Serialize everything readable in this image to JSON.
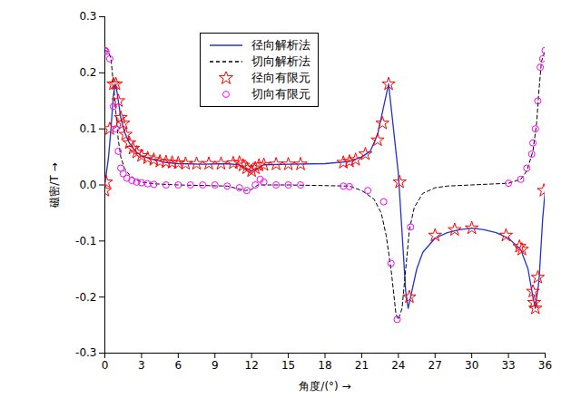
{
  "chart_data": {
    "type": "line",
    "x_label": "角度/(°)",
    "y_label": "磁密/T",
    "xlim": [
      0,
      36
    ],
    "xticks": [
      0,
      3,
      6,
      9,
      12,
      15,
      18,
      21,
      24,
      27,
      30,
      33,
      36
    ],
    "ylim": [
      -0.3,
      0.3
    ],
    "yticks": [
      -0.3,
      -0.2,
      -0.1,
      {
        "value": 0,
        "label": "0.0"
      },
      0.1,
      0.2,
      0.3
    ],
    "grid": false,
    "legend": "upper left",
    "series": [
      {
        "name": "径向解析法",
        "type": "line",
        "line_style": "solid",
        "color": "#2233cc",
        "x": [
          0,
          0.3,
          0.5,
          0.7,
          0.85,
          1.0,
          1.3,
          1.6,
          2,
          2.5,
          3,
          4,
          5,
          6,
          8,
          10,
          11,
          11.5,
          12,
          12.5,
          13,
          15,
          18,
          20,
          21,
          21.7,
          22.3,
          22.8,
          23.2,
          23.6,
          24,
          24.2,
          24.6,
          24.8,
          25,
          25.5,
          26,
          27,
          28,
          29,
          30,
          31,
          32,
          33,
          34,
          34.6,
          35,
          35.2,
          35.5,
          35.8,
          36
        ],
        "values": [
          0,
          0.05,
          0.1,
          0.16,
          0.18,
          0.165,
          0.12,
          0.095,
          0.075,
          0.06,
          0.052,
          0.045,
          0.04,
          0.038,
          0.037,
          0.038,
          0.036,
          0.03,
          0.025,
          0.03,
          0.036,
          0.037,
          0.038,
          0.042,
          0.05,
          0.06,
          0.09,
          0.14,
          0.18,
          0.1,
          0.02,
          -0.05,
          -0.19,
          -0.22,
          -0.2,
          -0.15,
          -0.12,
          -0.095,
          -0.085,
          -0.08,
          -0.077,
          -0.08,
          -0.085,
          -0.095,
          -0.115,
          -0.15,
          -0.2,
          -0.22,
          -0.17,
          -0.06,
          -0.01
        ]
      },
      {
        "name": "切向解析法",
        "type": "line",
        "line_style": "dashed",
        "color": "#000000",
        "x": [
          0,
          0.3,
          0.5,
          0.7,
          0.9,
          1.1,
          1.3,
          1.6,
          2,
          2.5,
          3,
          4,
          6,
          10,
          11.5,
          12,
          12.5,
          15,
          20,
          21,
          22,
          22.6,
          23,
          23.4,
          23.8,
          24,
          24.3,
          24.6,
          24.9,
          25.3,
          26,
          27,
          28,
          30,
          33,
          34,
          34.5,
          35,
          35.3,
          35.5,
          35.7,
          36
        ],
        "values": [
          0.24,
          0.238,
          0.225,
          0.18,
          0.13,
          0.08,
          0.05,
          0.03,
          0.018,
          0.01,
          0.005,
          0.002,
          0,
          -0.002,
          -0.01,
          -0.008,
          0,
          0,
          -0.002,
          -0.01,
          -0.025,
          -0.05,
          -0.09,
          -0.15,
          -0.23,
          -0.24,
          -0.22,
          -0.15,
          -0.08,
          -0.04,
          -0.015,
          -0.005,
          -0.002,
          0,
          0.003,
          0.01,
          0.025,
          0.06,
          0.11,
          0.17,
          0.22,
          0.24
        ]
      },
      {
        "name": "径向有限元",
        "type": "scatter",
        "marker": "star",
        "color": "#ff0000",
        "x": [
          0,
          0.1,
          0.4,
          0.7,
          0.9,
          1.1,
          1.3,
          1.5,
          1.7,
          2,
          2.3,
          2.6,
          3,
          3.5,
          4,
          4.5,
          5,
          5.5,
          6,
          6.6,
          7.5,
          8.5,
          9.5,
          10.5,
          11,
          11.3,
          11.6,
          12,
          12.3,
          12.6,
          13,
          14,
          15,
          16,
          19.5,
          20,
          20.5,
          21.3,
          22.3,
          22.7,
          23.2,
          24.1,
          24.9,
          27,
          28.6,
          30,
          32.8,
          33.9,
          34.1,
          35,
          35.1,
          35.2,
          35.4,
          35.9
        ],
        "values": [
          -0.01,
          0.005,
          0.1,
          0.18,
          0.18,
          0.15,
          0.12,
          0.11,
          0.09,
          0.075,
          0.065,
          0.058,
          0.052,
          0.048,
          0.045,
          0.042,
          0.041,
          0.04,
          0.039,
          0.038,
          0.038,
          0.038,
          0.038,
          0.039,
          0.04,
          0.035,
          0.03,
          0.025,
          0.03,
          0.035,
          0.036,
          0.037,
          0.037,
          0.037,
          0.04,
          0.042,
          0.045,
          0.055,
          0.08,
          0.11,
          0.18,
          0.005,
          -0.2,
          -0.09,
          -0.08,
          -0.077,
          -0.09,
          -0.11,
          -0.115,
          -0.19,
          -0.21,
          -0.22,
          -0.165,
          -0.01
        ]
      },
      {
        "name": "切向有限元",
        "type": "scatter",
        "marker": "circle",
        "color": "#ff00ff",
        "x": [
          0,
          0.1,
          0.4,
          0.7,
          0.9,
          1.1,
          1.3,
          1.5,
          1.8,
          2.2,
          2.6,
          3,
          3.5,
          4,
          5,
          6,
          7,
          8,
          9,
          10,
          11,
          11.6,
          12.3,
          12.7,
          13,
          14,
          15,
          16,
          19.5,
          20,
          21.5,
          22.8,
          23.4,
          23.9,
          25,
          33,
          34,
          34.5,
          34.9,
          35,
          35.2,
          35.4,
          35.6,
          35.8,
          36
        ],
        "values": [
          0.24,
          0.238,
          0.225,
          0.14,
          0.1,
          0.06,
          0.03,
          0.02,
          0.012,
          0.008,
          0.005,
          0.004,
          0.002,
          0.001,
          0,
          0,
          0,
          0,
          0,
          -0.002,
          -0.005,
          -0.01,
          0,
          0.01,
          0.005,
          0,
          0,
          0,
          -0.002,
          -0.003,
          -0.01,
          -0.03,
          -0.14,
          -0.24,
          -0.075,
          0.003,
          0.01,
          0.03,
          0.055,
          0.075,
          0.1,
          0.15,
          0.21,
          0.225,
          0.24
        ]
      }
    ]
  }
}
